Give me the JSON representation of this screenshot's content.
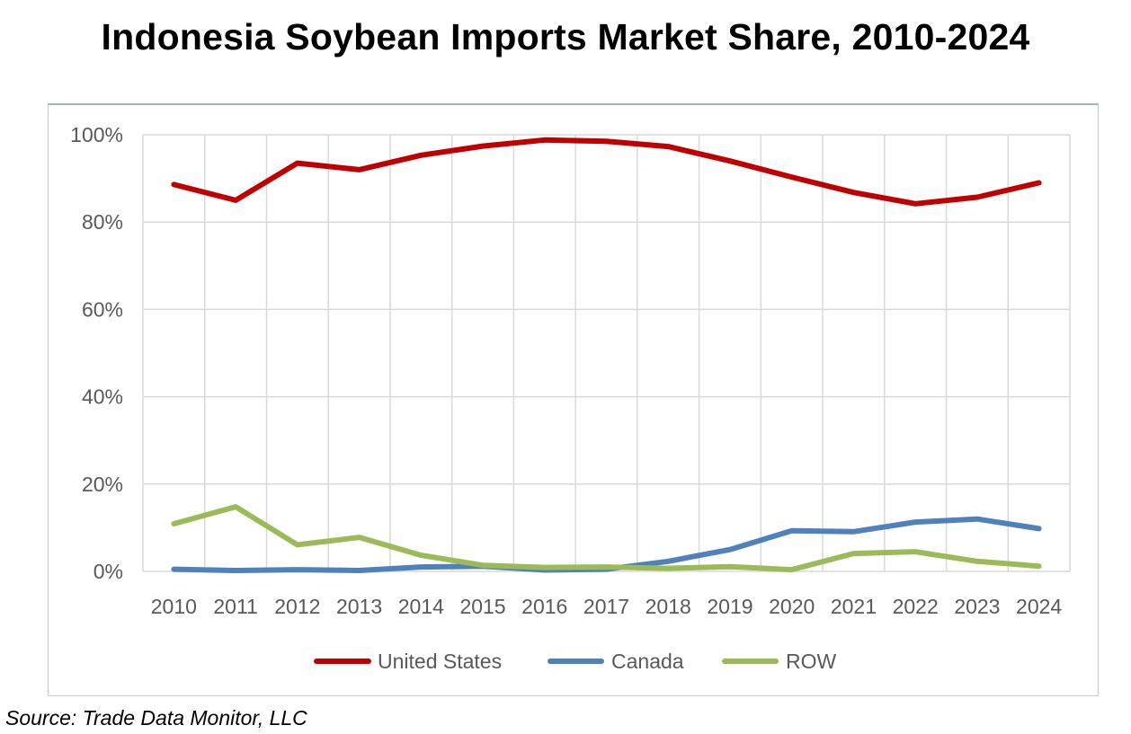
{
  "title": "Indonesia Soybean Imports Market Share, 2010-2024",
  "source": "Source: Trade Data Monitor, LLC",
  "chart_data": {
    "type": "line",
    "x": [
      "2010",
      "2011",
      "2012",
      "2013",
      "2014",
      "2015",
      "2016",
      "2017",
      "2018",
      "2019",
      "2020",
      "2021",
      "2022",
      "2023",
      "2024"
    ],
    "ylim": [
      0,
      100
    ],
    "y_ticks": [
      "0%",
      "20%",
      "40%",
      "60%",
      "80%",
      "100%"
    ],
    "grid": true,
    "legend": "bottom",
    "series": [
      {
        "name": "United States",
        "color": "#c00000",
        "values": [
          88.6,
          85.0,
          93.5,
          92.0,
          95.3,
          97.4,
          98.8,
          98.5,
          97.3,
          94.0,
          90.3,
          86.8,
          84.2,
          85.7,
          89.0
        ]
      },
      {
        "name": "Canada",
        "color": "#4f81bd",
        "values": [
          0.5,
          0.2,
          0.4,
          0.2,
          1.0,
          1.2,
          0.3,
          0.5,
          2.3,
          5.0,
          9.3,
          9.1,
          11.3,
          12.0,
          9.8
        ]
      },
      {
        "name": "ROW",
        "color": "#9bbb59",
        "values": [
          10.9,
          14.8,
          6.1,
          7.8,
          3.7,
          1.4,
          0.9,
          1.0,
          0.7,
          1.1,
          0.4,
          4.1,
          4.5,
          2.3,
          1.2
        ]
      }
    ]
  }
}
